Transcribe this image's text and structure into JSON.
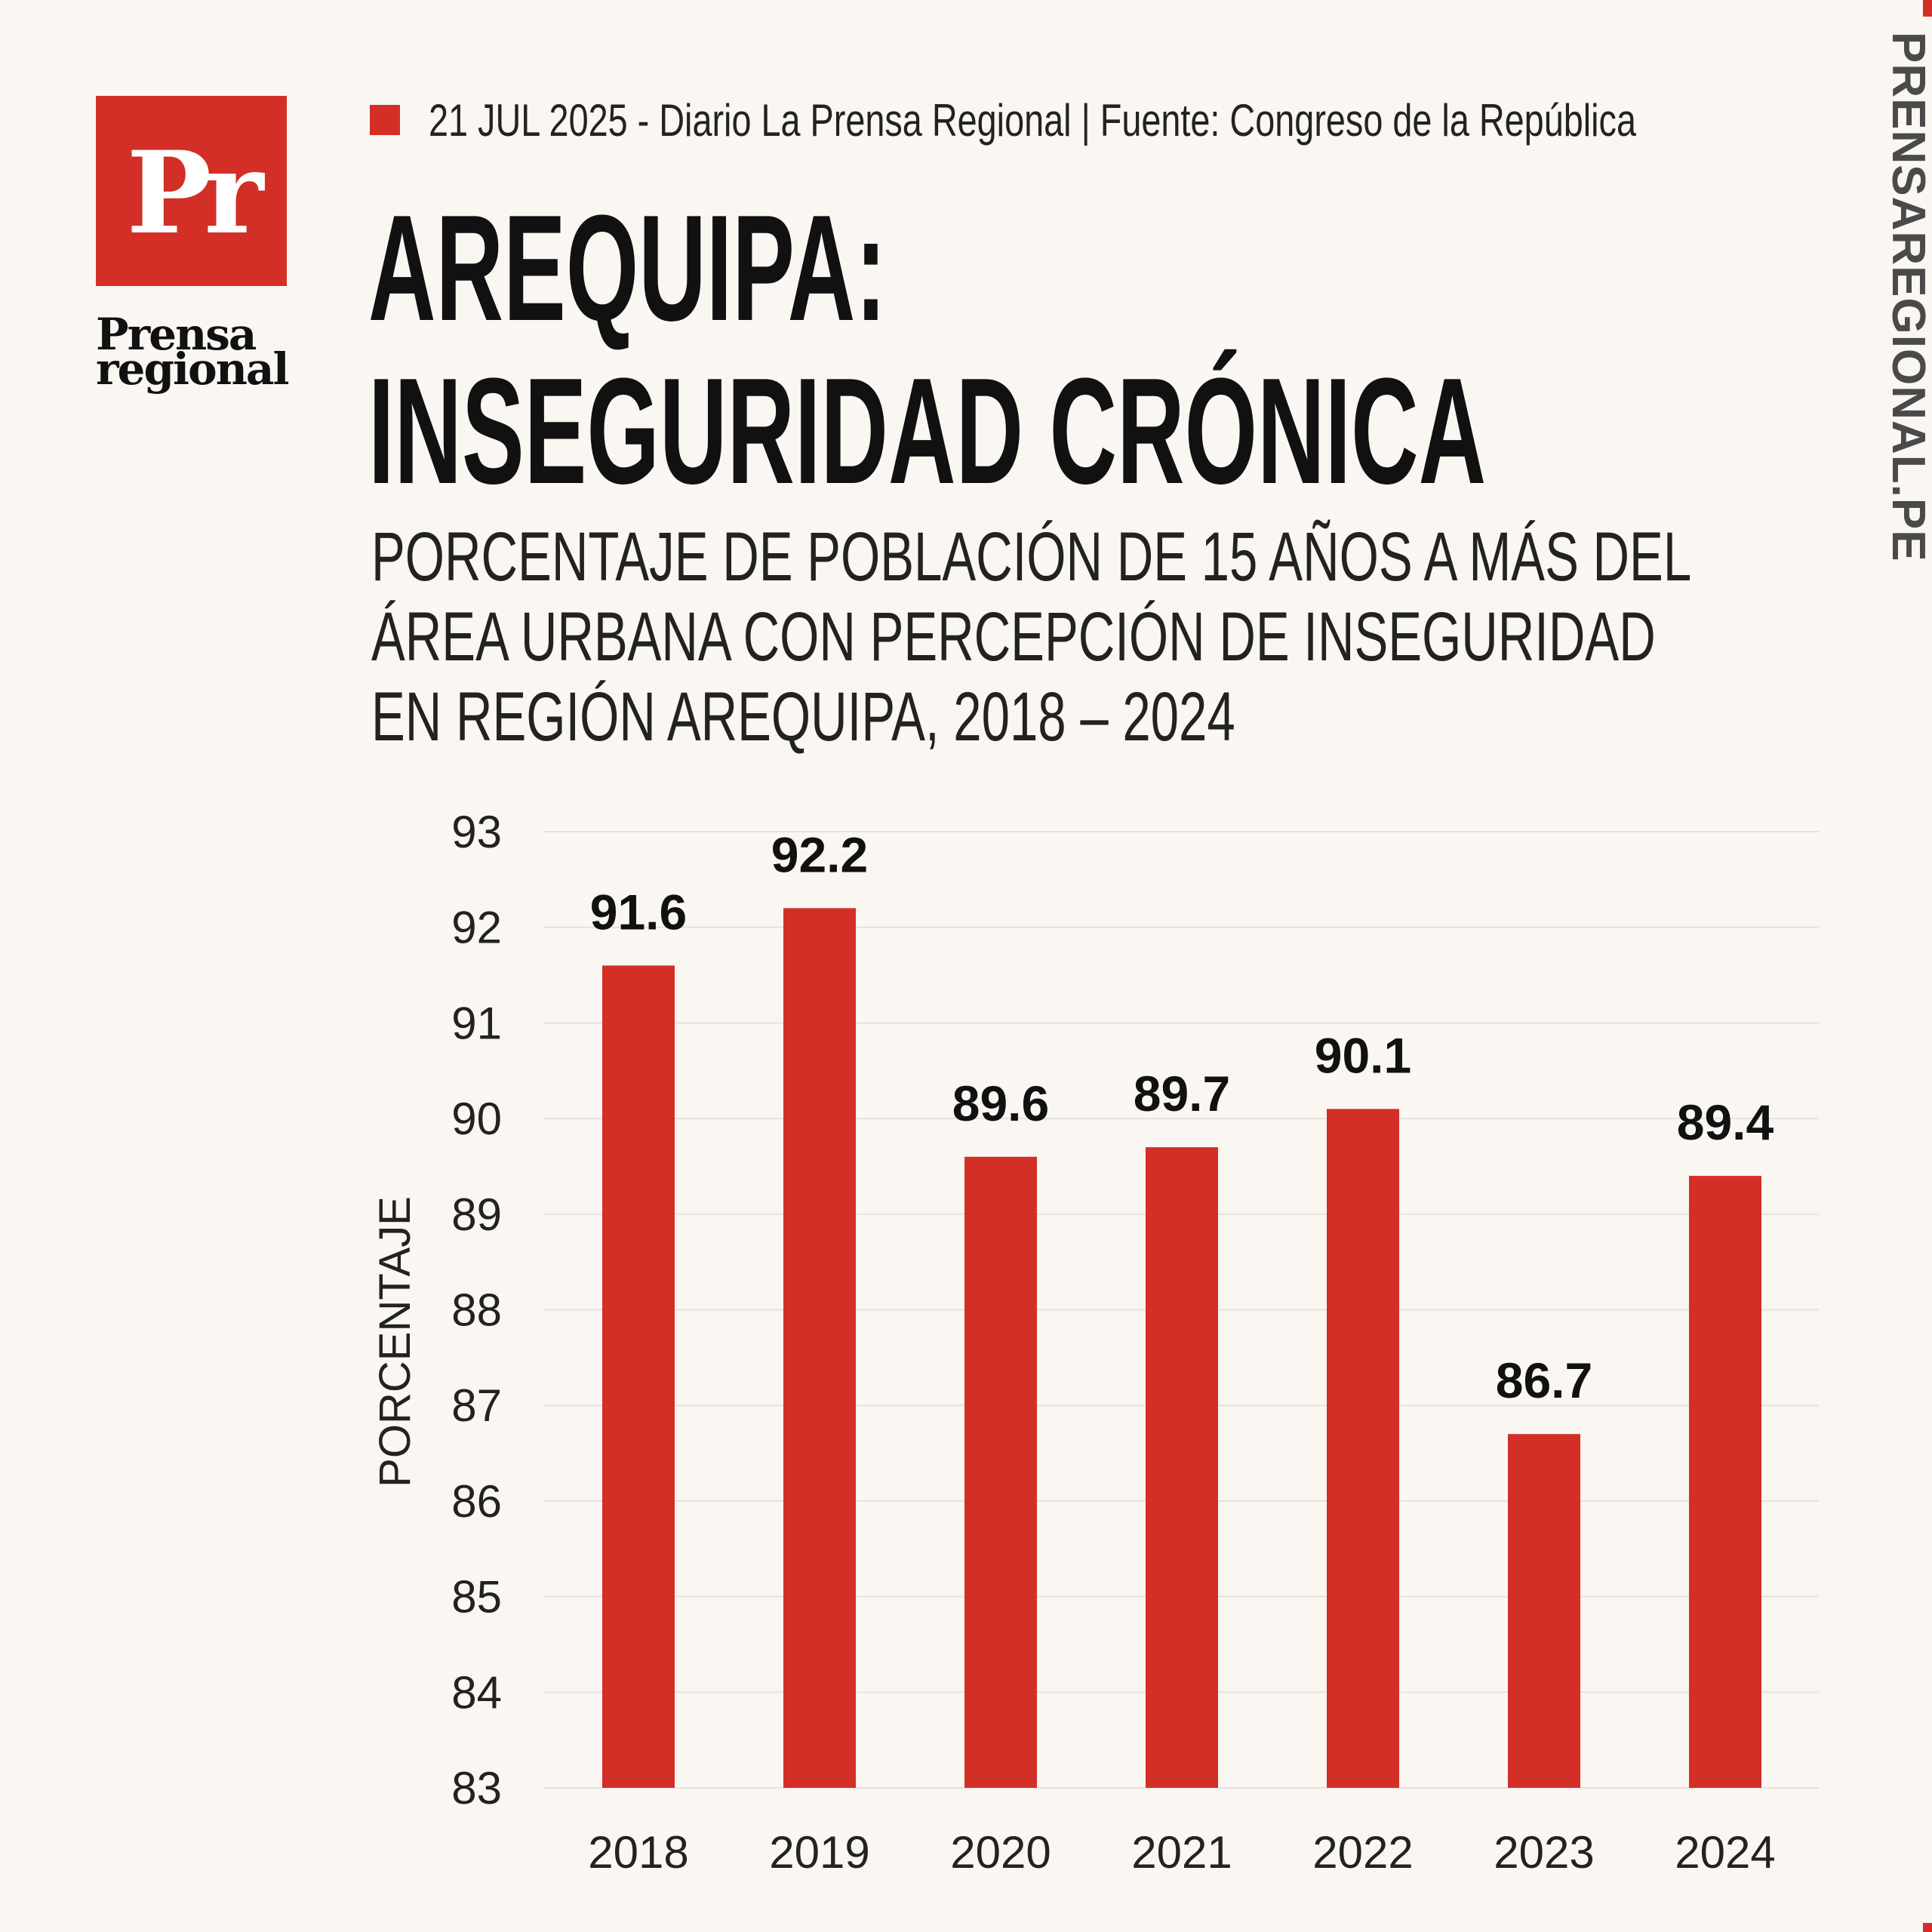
{
  "header": {
    "logo_mark": "Pr",
    "logo_name_line1": "Prensa",
    "logo_name_line2": "regional",
    "meta": "21 JUL 2025 -  Diario La Prensa Regional | Fuente: Congreso de la República",
    "title_line1": "AREQUIPA:",
    "title_line2": "INSEGURIDAD CRÓNICA",
    "subtitle_line1": "PORCENTAJE DE POBLACIÓN DE 15 AÑOS A MÁS DEL",
    "subtitle_line2": "ÁREA URBANA CON PERCEPCIÓN DE INSEGURIDAD",
    "subtitle_line3": "EN REGIÓN AREQUIPA, 2018 – 2024",
    "side_brand": "PRENSAREGIONAL.PE"
  },
  "colors": {
    "accent": "#d32f27",
    "background": "#faf6f2",
    "text": "#111111"
  },
  "chart_data": {
    "type": "bar",
    "title": "",
    "xlabel": "",
    "ylabel": "PORCENTAJE",
    "categories": [
      "2018",
      "2019",
      "2020",
      "2021",
      "2022",
      "2023",
      "2024"
    ],
    "values": [
      91.6,
      92.2,
      89.6,
      89.7,
      90.1,
      86.7,
      89.4
    ],
    "value_labels": [
      "91.6",
      "92.2",
      "89.6",
      "89.7",
      "90.1",
      "86.7",
      "89.4"
    ],
    "ylim": [
      83,
      93
    ],
    "yticks": [
      83,
      84,
      85,
      86,
      87,
      88,
      89,
      90,
      91,
      92,
      93
    ],
    "grid": true,
    "bar_color": "#d32f27"
  }
}
